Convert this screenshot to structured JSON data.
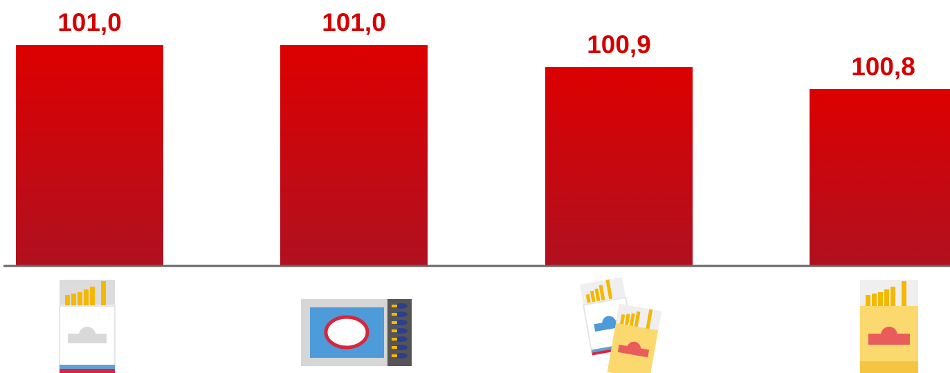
{
  "chart_data": {
    "type": "bar",
    "categories": [
      "",
      "",
      "",
      ""
    ],
    "values": [
      101.0,
      101.0,
      100.9,
      100.8
    ],
    "value_labels": [
      "101,0",
      "101,0",
      "100,9",
      "100,8"
    ],
    "category_icons": [
      "cigarette-pack-white-icon",
      "matchbox-icon",
      "cigarette-packs-pair-icon",
      "cigarette-pack-yellow-icon"
    ],
    "ylim": [
      100.0,
      101.0
    ],
    "title": "",
    "xlabel": "",
    "ylabel": "",
    "grid": false,
    "legend": "none"
  },
  "colors": {
    "bar_top": "#dc0000",
    "bar_bottom": "#b01020",
    "label": "#d40000",
    "axis": "#666666"
  }
}
